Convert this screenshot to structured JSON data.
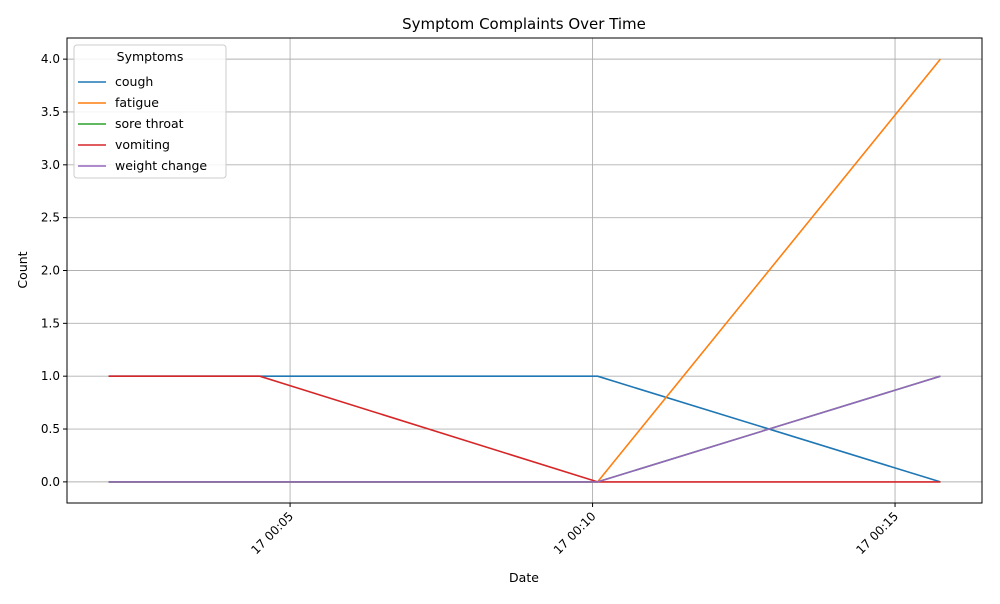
{
  "chart_data": {
    "type": "line",
    "title": "Symptom Complaints Over Time",
    "xlabel": "Date",
    "ylabel": "Count",
    "x": [
      "00:02",
      "00:04:30",
      "00:10:05",
      "00:15:45"
    ],
    "x_ticks": [
      {
        "value": "00:05",
        "label": "17 00:05"
      },
      {
        "value": "00:10",
        "label": "17 00:10"
      },
      {
        "value": "00:15",
        "label": "17 00:15"
      }
    ],
    "y_ticks": [
      "0.0",
      "0.5",
      "1.0",
      "1.5",
      "2.0",
      "2.5",
      "3.0",
      "3.5",
      "4.0"
    ],
    "ylim": [
      -0.2,
      4.2
    ],
    "grid": true,
    "legend": {
      "title": "Symptoms",
      "placement": "upper-left"
    },
    "series": [
      {
        "name": "cough",
        "color": "#1f77b4",
        "values": [
          1,
          1,
          1,
          0
        ]
      },
      {
        "name": "fatigue",
        "color": "#ff7f0e",
        "values": [
          0,
          0,
          0,
          4
        ]
      },
      {
        "name": "sore throat",
        "color": "#2ca02c",
        "values": [
          0,
          0,
          0,
          1
        ]
      },
      {
        "name": "vomiting",
        "color": "#d62728",
        "values": [
          1,
          1,
          0,
          0
        ]
      },
      {
        "name": "weight change",
        "color": "#9467bd",
        "values": [
          0,
          0,
          0,
          1
        ]
      }
    ]
  }
}
